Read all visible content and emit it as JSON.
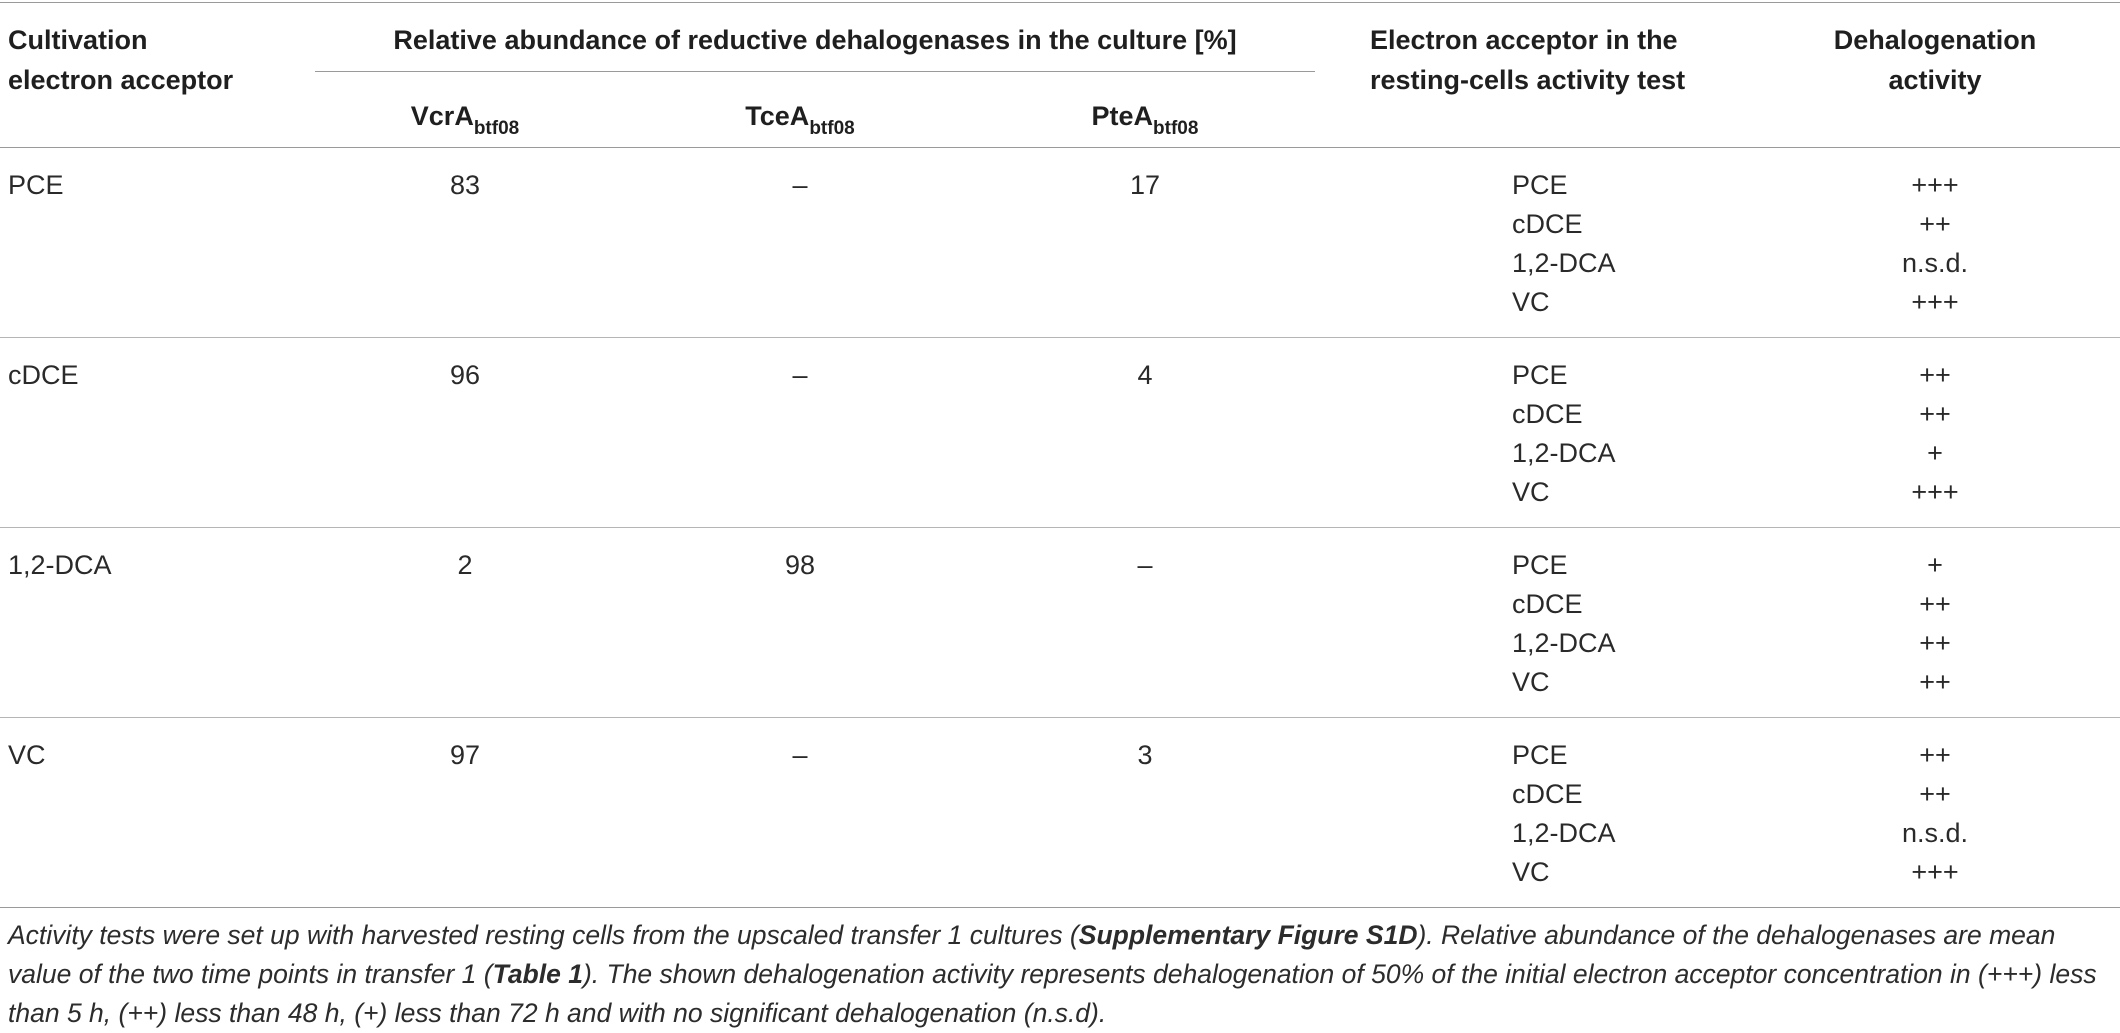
{
  "header": {
    "col1": [
      "Cultivation",
      "electron acceptor"
    ],
    "group_title": "Relative abundance of reductive dehalogenases in the culture [%]",
    "enzymes": [
      {
        "base": "VcrA",
        "sub": "btf08"
      },
      {
        "base": "TceA",
        "sub": "btf08"
      },
      {
        "base": "PteA",
        "sub": "btf08"
      }
    ],
    "col5": [
      "Electron acceptor in the",
      "resting-cells activity test"
    ],
    "col6": [
      "Dehalogenation",
      "activity"
    ]
  },
  "rows": [
    {
      "acceptor": "PCE",
      "vcra": "83",
      "tcea": "–",
      "ptea": "17",
      "tests": [
        {
          "name": "PCE",
          "activity": "+++"
        },
        {
          "name": "cDCE",
          "activity": "++"
        },
        {
          "name": "1,2-DCA",
          "activity": "n.s.d."
        },
        {
          "name": "VC",
          "activity": "+++"
        }
      ]
    },
    {
      "acceptor": "cDCE",
      "vcra": "96",
      "tcea": "–",
      "ptea": "4",
      "tests": [
        {
          "name": "PCE",
          "activity": "++"
        },
        {
          "name": "cDCE",
          "activity": "++"
        },
        {
          "name": "1,2-DCA",
          "activity": "+"
        },
        {
          "name": "VC",
          "activity": "+++"
        }
      ]
    },
    {
      "acceptor": "1,2-DCA",
      "vcra": "2",
      "tcea": "98",
      "ptea": "–",
      "tests": [
        {
          "name": "PCE",
          "activity": "+"
        },
        {
          "name": "cDCE",
          "activity": "++"
        },
        {
          "name": "1,2-DCA",
          "activity": "++"
        },
        {
          "name": "VC",
          "activity": "++"
        }
      ]
    },
    {
      "acceptor": "VC",
      "vcra": "97",
      "tcea": "–",
      "ptea": "3",
      "tests": [
        {
          "name": "PCE",
          "activity": "++"
        },
        {
          "name": "cDCE",
          "activity": "++"
        },
        {
          "name": "1,2-DCA",
          "activity": "n.s.d."
        },
        {
          "name": "VC",
          "activity": "+++"
        }
      ]
    }
  ],
  "caption": {
    "part1": "Activity tests were set up with harvested resting cells from the upscaled transfer 1 cultures (",
    "ref1": "Supplementary Figure S1D",
    "part2": "). Relative abundance of the dehalogenases are mean value of the two time points in transfer 1 (",
    "ref2": "Table 1",
    "part3": "). The shown dehalogenation activity represents dehalogenation of 50% of the initial electron acceptor concentration in (+++) less than 5 h, (++) less than 48 h, (+) less than 72 h and with no significant dehalogenation (n.s.d)."
  }
}
